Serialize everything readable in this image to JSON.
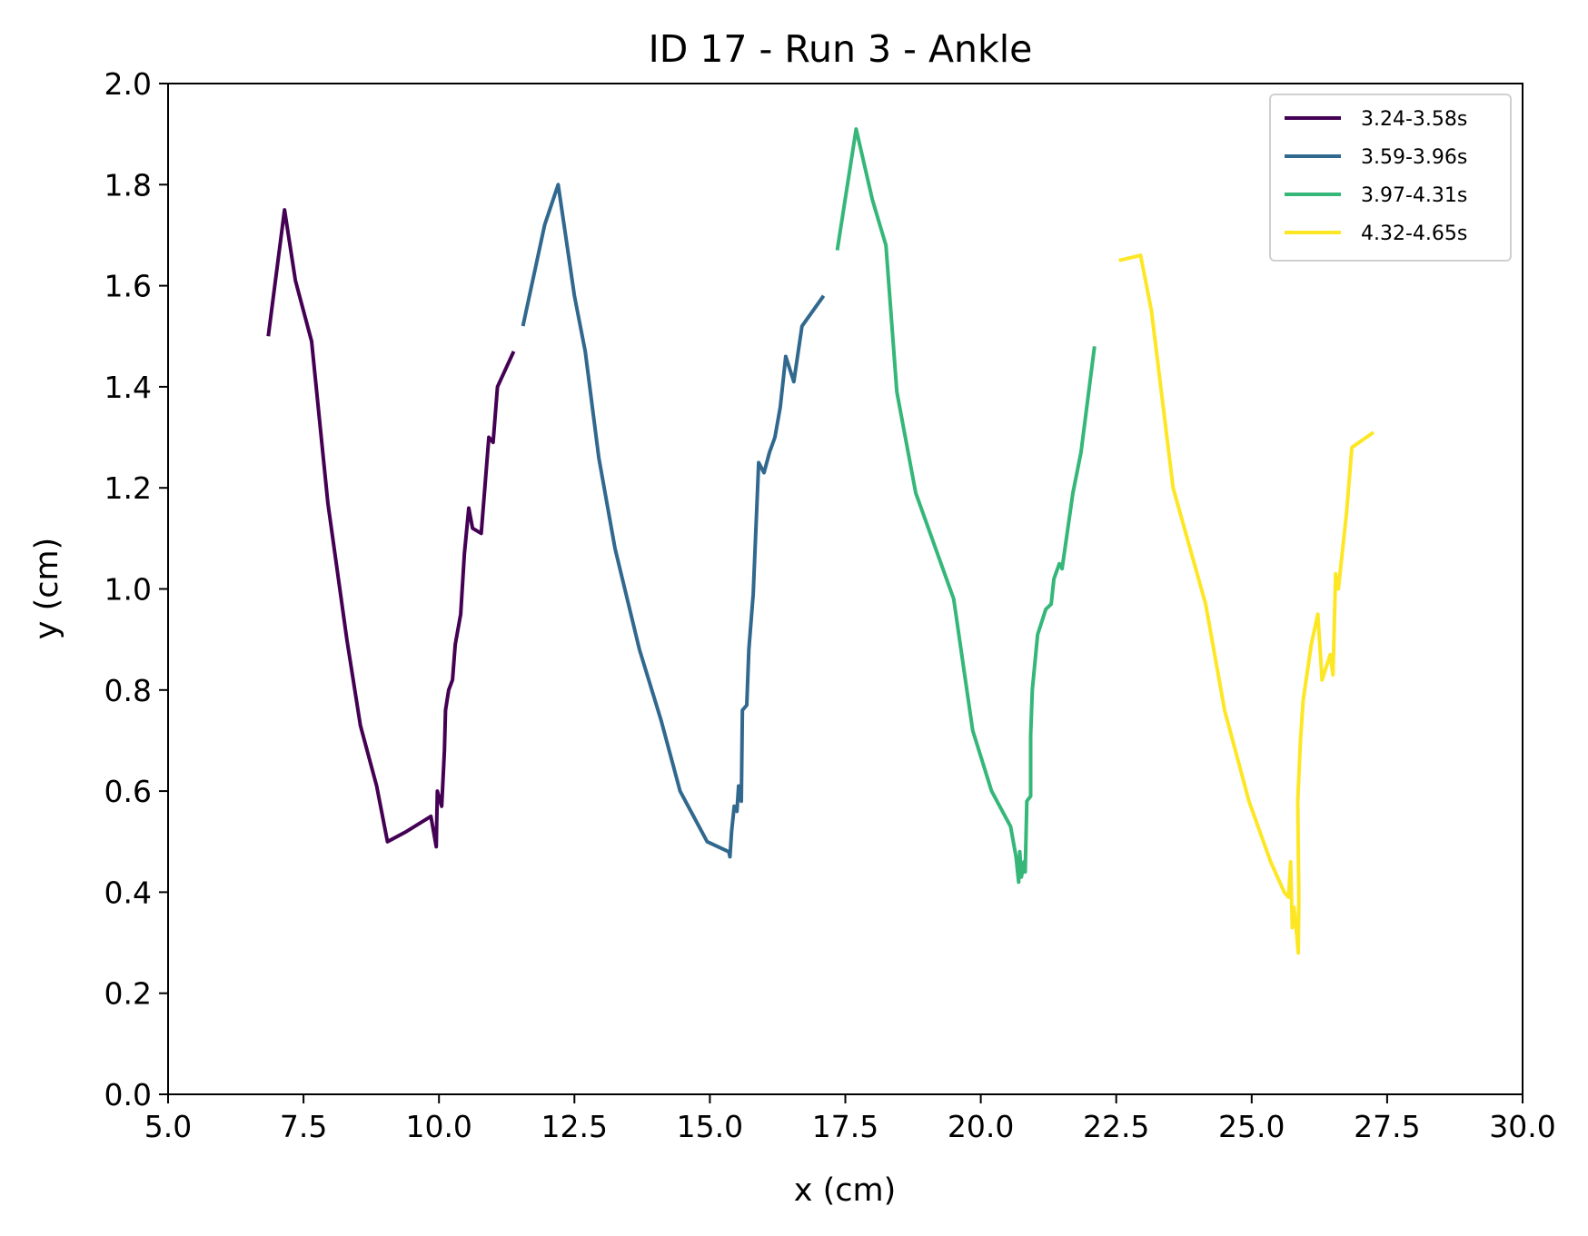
{
  "chart_data": {
    "type": "line",
    "title": "ID 17 - Run 3 - Ankle",
    "xlabel": "x (cm)",
    "ylabel": "y (cm)",
    "xlim": [
      5.0,
      30.0
    ],
    "ylim": [
      0.0,
      2.0
    ],
    "xticks": [
      "5.0",
      "7.5",
      "10.0",
      "12.5",
      "15.0",
      "17.5",
      "20.0",
      "22.5",
      "25.0",
      "27.5",
      "30.0"
    ],
    "yticks": [
      "0.0",
      "0.2",
      "0.4",
      "0.6",
      "0.8",
      "1.0",
      "1.2",
      "1.4",
      "1.6",
      "1.8",
      "2.0"
    ],
    "grid": false,
    "legend_position": "top-right",
    "series": [
      {
        "name": "3.24-3.58s",
        "color": "#440154",
        "segments": [
          [
            [
              6.85,
              1.5
            ],
            [
              7.15,
              1.75
            ],
            [
              7.35,
              1.61
            ],
            [
              7.65,
              1.49
            ],
            [
              7.95,
              1.17
            ],
            [
              8.3,
              0.9
            ],
            [
              8.55,
              0.73
            ],
            [
              8.85,
              0.61
            ],
            [
              9.05,
              0.5
            ],
            [
              9.4,
              0.52
            ],
            [
              9.85,
              0.55
            ],
            [
              9.95,
              0.49
            ],
            [
              9.97,
              0.6
            ],
            [
              10.05,
              0.57
            ],
            [
              10.1,
              0.68
            ],
            [
              10.12,
              0.76
            ],
            [
              10.18,
              0.8
            ],
            [
              10.25,
              0.82
            ],
            [
              10.3,
              0.89
            ],
            [
              10.4,
              0.95
            ],
            [
              10.47,
              1.07
            ],
            [
              10.55,
              1.16
            ],
            [
              10.62,
              1.12
            ],
            [
              10.78,
              1.11
            ],
            [
              10.92,
              1.3
            ],
            [
              11.0,
              1.29
            ],
            [
              11.08,
              1.4
            ],
            [
              11.38,
              1.47
            ]
          ]
        ]
      },
      {
        "name": "3.59-3.96s",
        "color": "#31688e",
        "segments": [
          [
            [
              11.55,
              1.52
            ],
            [
              11.95,
              1.72
            ],
            [
              12.2,
              1.8
            ],
            [
              12.5,
              1.58
            ],
            [
              12.7,
              1.47
            ],
            [
              12.95,
              1.26
            ],
            [
              13.25,
              1.08
            ],
            [
              13.7,
              0.88
            ],
            [
              14.1,
              0.74
            ],
            [
              14.45,
              0.6
            ],
            [
              14.95,
              0.5
            ],
            [
              15.35,
              0.48
            ],
            [
              15.37,
              0.47
            ],
            [
              15.4,
              0.52
            ],
            [
              15.45,
              0.57
            ],
            [
              15.5,
              0.56
            ],
            [
              15.53,
              0.61
            ],
            [
              15.58,
              0.58
            ],
            [
              15.6,
              0.76
            ],
            [
              15.68,
              0.77
            ],
            [
              15.72,
              0.88
            ],
            [
              15.8,
              0.99
            ],
            [
              15.9,
              1.25
            ],
            [
              16.0,
              1.23
            ],
            [
              16.1,
              1.27
            ],
            [
              16.2,
              1.3
            ],
            [
              16.3,
              1.36
            ],
            [
              16.4,
              1.46
            ],
            [
              16.55,
              1.41
            ],
            [
              16.7,
              1.52
            ],
            [
              17.1,
              1.58
            ]
          ]
        ]
      },
      {
        "name": "3.97-4.31s",
        "color": "#35b779",
        "segments": [
          [
            [
              17.35,
              1.67
            ],
            [
              17.7,
              1.91
            ],
            [
              18.0,
              1.77
            ],
            [
              18.25,
              1.68
            ],
            [
              18.45,
              1.39
            ],
            [
              18.8,
              1.19
            ],
            [
              19.1,
              1.1
            ],
            [
              19.5,
              0.98
            ],
            [
              19.85,
              0.72
            ],
            [
              20.2,
              0.6
            ],
            [
              20.55,
              0.53
            ],
            [
              20.65,
              0.47
            ],
            [
              20.7,
              0.42
            ],
            [
              20.72,
              0.48
            ],
            [
              20.75,
              0.43
            ],
            [
              20.8,
              0.46
            ],
            [
              20.82,
              0.44
            ],
            [
              20.85,
              0.58
            ],
            [
              20.92,
              0.59
            ],
            [
              20.92,
              0.71
            ],
            [
              20.95,
              0.8
            ],
            [
              21.05,
              0.91
            ],
            [
              21.2,
              0.96
            ],
            [
              21.3,
              0.97
            ],
            [
              21.35,
              1.02
            ],
            [
              21.45,
              1.05
            ],
            [
              21.5,
              1.04
            ],
            [
              21.7,
              1.19
            ],
            [
              21.85,
              1.27
            ],
            [
              22.1,
              1.48
            ]
          ]
        ]
      },
      {
        "name": "4.32-4.65s",
        "color": "#fde725",
        "segments": [
          [
            [
              22.55,
              1.65
            ],
            [
              22.95,
              1.66
            ],
            [
              23.15,
              1.55
            ],
            [
              23.55,
              1.2
            ],
            [
              24.15,
              0.97
            ],
            [
              24.5,
              0.76
            ],
            [
              24.95,
              0.58
            ],
            [
              25.35,
              0.46
            ],
            [
              25.6,
              0.4
            ],
            [
              25.68,
              0.39
            ],
            [
              25.72,
              0.46
            ],
            [
              25.75,
              0.33
            ],
            [
              25.78,
              0.37
            ],
            [
              25.82,
              0.33
            ],
            [
              25.86,
              0.28
            ],
            [
              25.87,
              0.39
            ],
            [
              25.85,
              0.58
            ],
            [
              25.9,
              0.7
            ],
            [
              25.95,
              0.78
            ],
            [
              26.1,
              0.89
            ],
            [
              26.22,
              0.95
            ],
            [
              26.3,
              0.82
            ],
            [
              26.45,
              0.87
            ],
            [
              26.5,
              0.83
            ],
            [
              26.55,
              1.03
            ],
            [
              26.6,
              1.0
            ],
            [
              26.75,
              1.15
            ],
            [
              26.85,
              1.28
            ],
            [
              27.25,
              1.31
            ]
          ]
        ]
      }
    ]
  }
}
